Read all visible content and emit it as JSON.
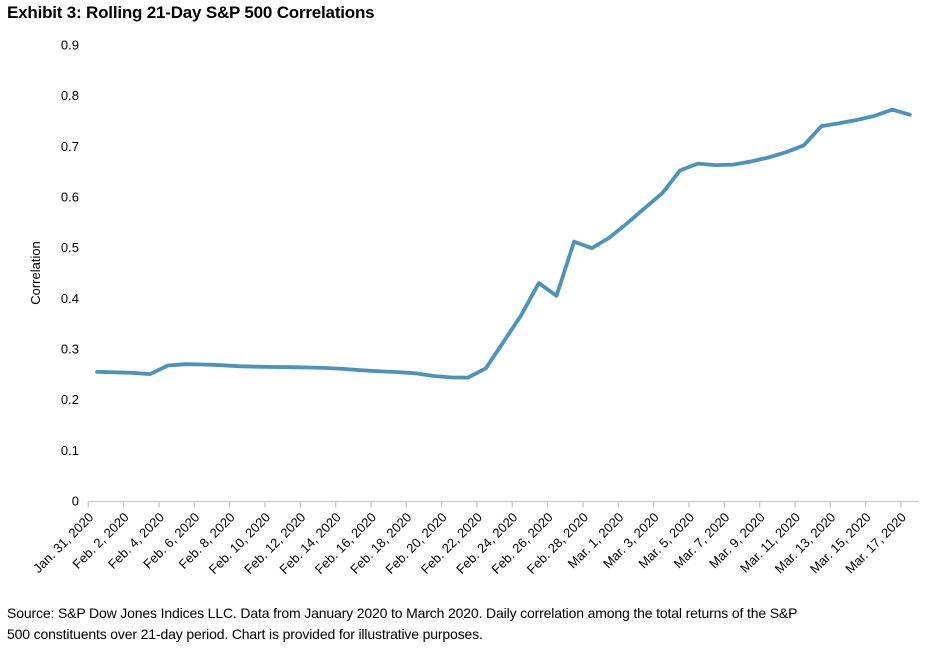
{
  "title": "Exhibit 3: Rolling 21-Day S&P 500 Correlations",
  "footer": {
    "line1": "Source: S&P Dow Jones Indices LLC. Data from January 2020 to March 2020. Daily correlation among the total returns of the S&P",
    "line2": "500 constituents over 21-day period. Chart is provided for illustrative purposes."
  },
  "colors": {
    "line": "#4C93BC",
    "axis": "#C9C9C9",
    "text": "#000000"
  },
  "chart_data": {
    "type": "line",
    "title": "Exhibit 3: Rolling 21-Day S&P 500 Correlations",
    "xlabel": "",
    "ylabel": "Correlation",
    "ylim": [
      0,
      0.9
    ],
    "grid": false,
    "legend": false,
    "y_tick_labels": [
      "0",
      "0.1",
      "0.2",
      "0.3",
      "0.4",
      "0.5",
      "0.6",
      "0.7",
      "0.8",
      "0.9"
    ],
    "x_tick_labels": [
      "Jan. 31, 2020",
      "Feb. 2, 2020",
      "Feb. 4, 2020",
      "Feb. 6, 2020",
      "Feb. 8, 2020",
      "Feb. 10, 2020",
      "Feb. 12, 2020",
      "Feb. 14, 2020",
      "Feb. 16, 2020",
      "Feb. 18, 2020",
      "Feb. 20, 2020",
      "Feb. 22, 2020",
      "Feb. 24, 2020",
      "Feb. 26, 2020",
      "Feb. 28, 2020",
      "Mar. 1, 2020",
      "Mar. 3, 2020",
      "Mar. 5, 2020",
      "Mar. 7, 2020",
      "Mar. 9, 2020",
      "Mar. 11, 2020",
      "Mar. 13, 2020",
      "Mar. 15, 2020",
      "Mar. 17, 2020"
    ],
    "x_ticks_every_n_points": 2,
    "x_label_angle_deg": -45,
    "series": [
      {
        "name": "Rolling 21-Day S&P 500 Correlation",
        "values": [
          0.255,
          0.254,
          0.253,
          0.2505,
          0.2675,
          0.27,
          0.2695,
          0.268,
          0.266,
          0.265,
          0.2645,
          0.264,
          0.2635,
          0.2625,
          0.2605,
          0.258,
          0.256,
          0.2545,
          0.252,
          0.247,
          0.244,
          0.2435,
          0.262,
          0.314,
          0.3665,
          0.43,
          0.405,
          0.512,
          0.499,
          0.52,
          0.548,
          0.578,
          0.608,
          0.6525,
          0.666,
          0.663,
          0.664,
          0.67,
          0.678,
          0.6885,
          0.702,
          0.74,
          0.7455,
          0.752,
          0.76,
          0.7725,
          0.7625
        ]
      }
    ]
  }
}
